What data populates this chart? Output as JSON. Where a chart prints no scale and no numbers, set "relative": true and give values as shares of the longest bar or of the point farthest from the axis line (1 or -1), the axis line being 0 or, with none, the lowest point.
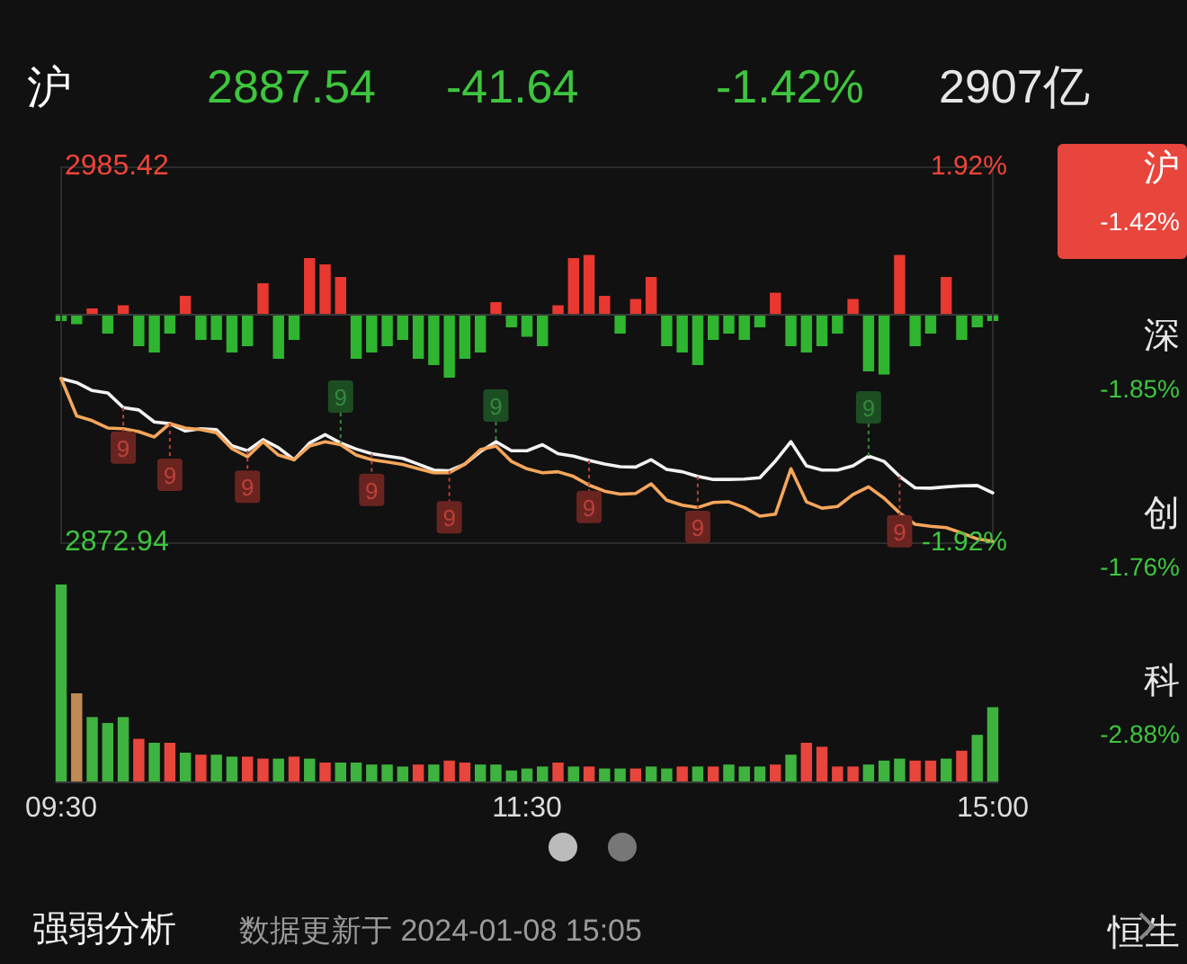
{
  "chart_data": [
    {
      "type": "other",
      "annotations": [
        "沪",
        "2887.54",
        "-41.64",
        "-1.42%",
        "2907亿"
      ]
    },
    {
      "type": "line",
      "categories": [
        null,
        null,
        null,
        null,
        null,
        null,
        null,
        null,
        null,
        null,
        null,
        null,
        null,
        null,
        null,
        null,
        null,
        null,
        null,
        null,
        null,
        null,
        null,
        null,
        null,
        null,
        null,
        null,
        null,
        null,
        null,
        null,
        null,
        null,
        null,
        null,
        null,
        null,
        null,
        null,
        null,
        null,
        null,
        null,
        null,
        null,
        null,
        null,
        null,
        null,
        null,
        null,
        null,
        null,
        null,
        null,
        null,
        null,
        null,
        null,
        null
      ],
      "series": [
        {
          "color": "#f2f2f2",
          "values": [
            2922.2,
            2921.0,
            2918.6,
            2917.9,
            2913.5,
            2912.8,
            2909.2,
            2908.7,
            2906.5,
            2907.2,
            2906.9,
            2902.1,
            2900.6,
            2903.9,
            2901.5,
            2897.9,
            2902.9,
            2905.4,
            2902.9,
            2901.1,
            2899.7,
            2899.0,
            2898.3,
            2896.6,
            2894.8,
            2894.6,
            2896.6,
            2900.3,
            2903.3,
            2900.6,
            2900.6,
            2902.4,
            2899.7,
            2899.0,
            2897.7,
            2896.6,
            2895.8,
            2895.7,
            2897.9,
            2895.0,
            2894.3,
            2892.9,
            2892.0,
            2892.0,
            2892.1,
            2892.5,
            2897.5,
            2903.3,
            2896.1,
            2894.8,
            2894.8,
            2896.1,
            2899.0,
            2897.4,
            2892.9,
            2889.5,
            2889.4,
            2889.8,
            2890.1,
            2890.2,
            2888.0
          ]
        },
        {
          "color": "#f5a65b",
          "values": [
            2922.2,
            2911.0,
            2909.6,
            2907.4,
            2907.2,
            2906.3,
            2904.7,
            2908.7,
            2907.4,
            2906.9,
            2906.0,
            2901.2,
            2898.8,
            2903.3,
            2899.3,
            2897.9,
            2902.0,
            2903.3,
            2902.4,
            2899.3,
            2897.9,
            2897.2,
            2896.5,
            2895.2,
            2894.0,
            2894.0,
            2896.6,
            2900.9,
            2902.0,
            2897.4,
            2895.2,
            2894.0,
            2894.3,
            2892.9,
            2890.3,
            2888.5,
            2887.6,
            2887.8,
            2890.7,
            2885.8,
            2884.3,
            2883.6,
            2885.1,
            2885.3,
            2883.6,
            2881.0,
            2881.6,
            2895.2,
            2885.3,
            2883.4,
            2883.9,
            2887.5,
            2889.8,
            2886.4,
            2882.0,
            2878.6,
            2878.0,
            2877.6,
            2876.0,
            2874.2,
            2873.5
          ]
        },
        {
          "type": "scatter",
          "marker": "square",
          "color": "#6a2420",
          "values": [
            null,
            null,
            null,
            null,
            2901.5,
            null,
            null,
            2893.4,
            null,
            null,
            null,
            null,
            2889.8,
            null,
            null,
            null,
            null,
            null,
            null,
            null,
            2888.9,
            null,
            null,
            null,
            null,
            2880.7,
            null,
            null,
            null,
            null,
            null,
            null,
            null,
            null,
            2883.8,
            null,
            null,
            null,
            null,
            null,
            null,
            2877.8,
            null,
            null,
            null,
            null,
            null,
            null,
            null,
            null,
            null,
            null,
            null,
            null,
            2876.5,
            null,
            null,
            null,
            null,
            null,
            null
          ]
        },
        {
          "type": "scatter",
          "marker": "square",
          "color": "#1d4d22",
          "values": [
            null,
            null,
            null,
            null,
            null,
            null,
            null,
            null,
            null,
            null,
            null,
            null,
            null,
            null,
            null,
            null,
            null,
            null,
            2916.8,
            null,
            null,
            null,
            null,
            null,
            null,
            null,
            null,
            null,
            2914.1,
            null,
            null,
            null,
            null,
            null,
            null,
            null,
            null,
            null,
            null,
            null,
            null,
            null,
            null,
            null,
            null,
            null,
            null,
            null,
            null,
            null,
            null,
            null,
            2913.6,
            null,
            null,
            null,
            null,
            null,
            null,
            null,
            null
          ]
        }
      ],
      "annotations": [
        {
          "text": "9",
          "y": 2901.5
        },
        {
          "text": "9",
          "y": 2893.4
        },
        {
          "text": "9",
          "y": 2889.8
        },
        {
          "text": "9",
          "y": 2916.8
        },
        {
          "text": "9",
          "y": 2888.9
        },
        {
          "text": "9",
          "y": 2880.7
        },
        {
          "text": "9",
          "y": 2914.1
        },
        {
          "text": "9",
          "y": 2883.8
        },
        {
          "text": "9",
          "y": 2877.8
        },
        {
          "text": "9",
          "y": 2913.6
        },
        {
          "text": "9",
          "y": 2876.5
        }
      ],
      "ylim": [
        2872.94,
        2985.42
      ],
      "yticks": [
        2985.42,
        2872.94
      ],
      "y2lim": [
        -1.92,
        1.92
      ],
      "y2ticks": [
        {
          "value": 1.92,
          "label": "1.92%"
        },
        {
          "value": -1.92,
          "label": "-1.92%"
        }
      ],
      "tick_labels": "y"
    },
    {
      "type": "bar",
      "relative": true,
      "tick_labels": false,
      "categories": [
        null,
        null,
        null,
        null,
        null,
        null,
        null,
        null,
        null,
        null,
        null,
        null,
        null,
        null,
        null,
        null,
        null,
        null,
        null,
        null,
        null,
        null,
        null,
        null,
        null,
        null,
        null,
        null,
        null,
        null,
        null,
        null,
        null,
        null,
        null,
        null,
        null,
        null,
        null,
        null,
        null,
        null,
        null,
        null,
        null,
        null,
        null,
        null,
        null,
        null,
        null,
        null,
        null,
        null,
        null,
        null,
        null,
        null,
        null,
        null,
        null
      ],
      "values": [
        -0.1,
        -0.15,
        0.1,
        -0.3,
        0.15,
        -0.5,
        -0.6,
        -0.3,
        0.3,
        -0.4,
        -0.4,
        -0.6,
        -0.5,
        0.5,
        -0.7,
        -0.4,
        0.9,
        0.8,
        0.6,
        -0.7,
        -0.6,
        -0.5,
        -0.4,
        -0.7,
        -0.8,
        -1,
        -0.7,
        -0.6,
        0.2,
        -0.2,
        -0.35,
        -0.5,
        0.15,
        0.9,
        0.95,
        0.3,
        -0.3,
        0.25,
        0.6,
        -0.5,
        -0.6,
        -0.8,
        -0.4,
        -0.3,
        -0.4,
        -0.2,
        0.35,
        -0.5,
        -0.6,
        -0.5,
        -0.3,
        0.25,
        -0.9,
        -0.95,
        0.95,
        -0.5,
        -0.3,
        0.6,
        -0.4,
        -0.2,
        -0.1
      ],
      "colors": [
        "#2fb52f",
        "#2fb52f",
        "#e8382f",
        "#2fb52f",
        "#e8382f",
        "#2fb52f",
        "#2fb52f",
        "#2fb52f",
        "#e8382f",
        "#2fb52f",
        "#2fb52f",
        "#2fb52f",
        "#2fb52f",
        "#e8382f",
        "#2fb52f",
        "#2fb52f",
        "#e8382f",
        "#e8382f",
        "#e8382f",
        "#2fb52f",
        "#2fb52f",
        "#2fb52f",
        "#2fb52f",
        "#2fb52f",
        "#2fb52f",
        "#2fb52f",
        "#2fb52f",
        "#2fb52f",
        "#e8382f",
        "#2fb52f",
        "#2fb52f",
        "#2fb52f",
        "#e8382f",
        "#e8382f",
        "#e8382f",
        "#e8382f",
        "#2fb52f",
        "#e8382f",
        "#e8382f",
        "#2fb52f",
        "#2fb52f",
        "#2fb52f",
        "#2fb52f",
        "#2fb52f",
        "#2fb52f",
        "#2fb52f",
        "#e8382f",
        "#2fb52f",
        "#2fb52f",
        "#2fb52f",
        "#2fb52f",
        "#e8382f",
        "#2fb52f",
        "#2fb52f",
        "#e8382f",
        "#2fb52f",
        "#2fb52f",
        "#e8382f",
        "#2fb52f",
        "#2fb52f",
        "#2fb52f"
      ]
    },
    {
      "type": "bar",
      "relative": true,
      "categories": [
        "09:30",
        null,
        null,
        null,
        null,
        null,
        null,
        null,
        null,
        null,
        null,
        null,
        null,
        null,
        null,
        null,
        null,
        null,
        null,
        null,
        null,
        null,
        null,
        null,
        null,
        null,
        null,
        null,
        null,
        null,
        "11:30",
        null,
        null,
        null,
        null,
        null,
        null,
        null,
        null,
        null,
        null,
        null,
        null,
        null,
        null,
        null,
        null,
        null,
        null,
        null,
        null,
        null,
        null,
        null,
        null,
        null,
        null,
        null,
        null,
        null,
        "15:00"
      ],
      "values": [
        1,
        0.45,
        0.33,
        0.3,
        0.33,
        0.22,
        0.2,
        0.2,
        0.15,
        0.14,
        0.14,
        0.13,
        0.13,
        0.12,
        0.12,
        0.13,
        0.12,
        0.1,
        0.1,
        0.1,
        0.09,
        0.09,
        0.08,
        0.09,
        0.09,
        0.11,
        0.1,
        0.09,
        0.09,
        0.06,
        0.07,
        0.08,
        0.1,
        0.08,
        0.08,
        0.07,
        0.07,
        0.07,
        0.08,
        0.07,
        0.08,
        0.08,
        0.08,
        0.09,
        0.08,
        0.08,
        0.09,
        0.14,
        0.2,
        0.18,
        0.08,
        0.08,
        0.09,
        0.11,
        0.12,
        0.11,
        0.11,
        0.12,
        0.16,
        0.24,
        0.38
      ],
      "colors": [
        "#3fb33f",
        "#c08a55",
        "#3fb33f",
        "#3fb33f",
        "#3fb33f",
        "#e8453c",
        "#3fb33f",
        "#e8453c",
        "#3fb33f",
        "#e8453c",
        "#3fb33f",
        "#3fb33f",
        "#e8453c",
        "#e8453c",
        "#3fb33f",
        "#e8453c",
        "#3fb33f",
        "#e8453c",
        "#3fb33f",
        "#3fb33f",
        "#3fb33f",
        "#3fb33f",
        "#3fb33f",
        "#e8453c",
        "#3fb33f",
        "#e8453c",
        "#e8453c",
        "#3fb33f",
        "#3fb33f",
        "#3fb33f",
        "#3fb33f",
        "#3fb33f",
        "#e8453c",
        "#3fb33f",
        "#e8453c",
        "#3fb33f",
        "#3fb33f",
        "#e8453c",
        "#3fb33f",
        "#3fb33f",
        "#e8453c",
        "#3fb33f",
        "#e8453c",
        "#3fb33f",
        "#3fb33f",
        "#3fb33f",
        "#e8453c",
        "#3fb33f",
        "#e8453c",
        "#e8453c",
        "#e8453c",
        "#e8453c",
        "#3fb33f",
        "#3fb33f",
        "#3fb33f",
        "#e8453c",
        "#e8453c",
        "#3fb33f",
        "#e8453c",
        "#3fb33f",
        "#3fb33f"
      ]
    },
    {
      "type": "other",
      "annotations": [
        "沪",
        "-1.42%",
        "深",
        "-1.85%",
        "创",
        "-1.76%",
        "科",
        "-2.88%",
        "恒生"
      ]
    },
    {
      "type": "other",
      "annotations": [
        "强弱分析",
        "数据更新于 2024-01-08 15:05"
      ]
    }
  ]
}
